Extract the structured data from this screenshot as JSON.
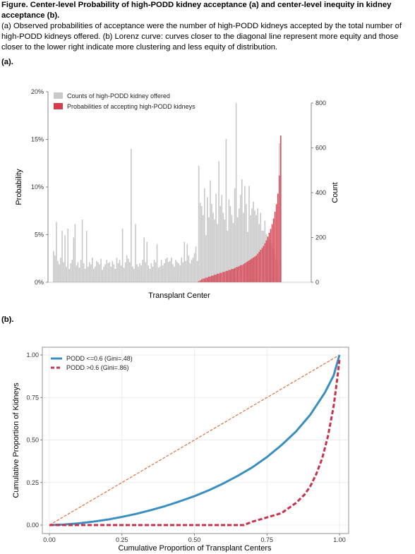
{
  "caption": {
    "title": "Figure. Center-level Probability of high-PODD kidney acceptance (a) and center-level inequity in kidney acceptance (b).",
    "body": "(a) Observed probabilities of acceptance were the number of high-PODD kidneys accepted by the total number of high-PODD kidneys offered. (b) Lorenz curve: curves closer to the diagonal line represent more equity and those closer to the lower right indicate more clustering and less equity of distribution.",
    "label_a": "(a).",
    "label_b": "(b)."
  },
  "colors": {
    "counts": "#c8c8c8",
    "probabilities": "#d43d4c",
    "lorenz_low": "#3a8fc0",
    "lorenz_high": "#c8324b",
    "diagonal": "#e0703a"
  },
  "chart_data": [
    {
      "type": "bar",
      "title": "",
      "xlabel": "Transplant Center",
      "ylabel": "Probability",
      "ylabel_right": "Count",
      "ylim": [
        0,
        0.2
      ],
      "ylim_right": [
        0,
        800
      ],
      "yticks": [
        "0%",
        "5%",
        "10%",
        "15%",
        "20%"
      ],
      "yticks_right": [
        "0",
        "200",
        "400",
        "600",
        "800"
      ],
      "legend_position": "top-left",
      "series": [
        {
          "name": "Counts of high-PODD kidney offered",
          "axis": "right",
          "values": [
            140,
            120,
            270,
            95,
            80,
            110,
            230,
            90,
            210,
            70,
            240,
            60,
            85,
            100,
            200,
            260,
            75,
            90,
            65,
            100,
            280,
            85,
            60,
            230,
            70,
            90,
            80,
            110,
            60,
            70,
            95,
            90,
            80,
            105,
            55,
            70,
            80,
            100,
            85,
            90,
            70,
            95,
            80,
            60,
            110,
            85,
            100,
            75,
            240,
            65,
            90,
            120,
            105,
            90,
            595,
            70,
            60,
            260,
            80,
            70,
            85,
            75,
            100,
            200,
            90,
            180,
            75,
            60,
            85,
            70,
            100,
            90,
            170,
            65,
            70,
            100,
            75,
            85,
            105,
            110,
            90,
            95,
            110,
            80,
            70,
            100,
            90,
            85,
            75,
            110,
            90,
            180,
            95,
            170,
            120,
            85,
            100,
            110,
            130,
            160,
            95,
            520,
            355,
            340,
            300,
            420,
            210,
            380,
            290,
            455,
            350,
            310,
            280,
            395,
            260,
            540,
            340,
            390,
            310,
            280,
            640,
            230,
            370,
            340,
            300,
            265,
            420,
            800,
            290,
            330,
            390,
            460,
            310,
            430,
            350,
            225,
            430,
            300,
            330,
            360,
            320,
            300,
            330,
            260,
            310,
            230,
            230,
            275,
            215,
            200,
            190,
            175,
            165,
            150,
            120,
            100,
            90,
            620,
            95
          ],
          "color": "#c8c8c8"
        },
        {
          "name": "Probabilities of accepting high-PODD kidneys",
          "axis": "left",
          "values": [
            0,
            0,
            0,
            0,
            0,
            0,
            0,
            0,
            0,
            0,
            0,
            0,
            0,
            0,
            0,
            0,
            0,
            0,
            0,
            0,
            0,
            0,
            0,
            0,
            0,
            0,
            0,
            0,
            0,
            0,
            0,
            0,
            0,
            0,
            0,
            0,
            0,
            0,
            0,
            0,
            0,
            0,
            0,
            0,
            0,
            0,
            0,
            0,
            0,
            0,
            0,
            0,
            0,
            0,
            0,
            0,
            0,
            0,
            0,
            0,
            0,
            0,
            0,
            0,
            0,
            0,
            0,
            0,
            0,
            0,
            0,
            0,
            0,
            0,
            0,
            0,
            0,
            0,
            0,
            0,
            0,
            0,
            0,
            0,
            0,
            0,
            0,
            0,
            0,
            0,
            0,
            0,
            0,
            0,
            0,
            0,
            0,
            0,
            0,
            0,
            0,
            0.001,
            0.002,
            0.003,
            0.004,
            0.004,
            0.005,
            0.005,
            0.006,
            0.006,
            0.007,
            0.007,
            0.008,
            0.008,
            0.009,
            0.009,
            0.01,
            0.01,
            0.011,
            0.011,
            0.012,
            0.012,
            0.013,
            0.013,
            0.014,
            0.014,
            0.015,
            0.016,
            0.016,
            0.017,
            0.018,
            0.018,
            0.019,
            0.02,
            0.021,
            0.022,
            0.023,
            0.024,
            0.025,
            0.026,
            0.027,
            0.028,
            0.03,
            0.032,
            0.034,
            0.036,
            0.038,
            0.041,
            0.044,
            0.048,
            0.052,
            0.056,
            0.061,
            0.067,
            0.074,
            0.082,
            0.093,
            0.112,
            0.154
          ],
          "color": "#d43d4c"
        }
      ]
    },
    {
      "type": "line",
      "title": "",
      "xlabel": "Cumulative Proportion of Transplant Centers",
      "ylabel": "Cumulative Proportion of Kidneys",
      "xlim": [
        0,
        1
      ],
      "ylim": [
        0,
        1
      ],
      "xticks": [
        "0.00",
        "0.25",
        "0.50",
        "0.75",
        "1.00"
      ],
      "yticks": [
        "0.00",
        "0.25",
        "0.50",
        "0.75",
        "1.00"
      ],
      "legend_position": "top-left",
      "series": [
        {
          "name": "PODD <=0.6 (Gini=.48)",
          "style": "solid",
          "color": "#3a8fc0",
          "x": [
            0,
            0.05,
            0.1,
            0.15,
            0.2,
            0.25,
            0.3,
            0.35,
            0.4,
            0.45,
            0.5,
            0.55,
            0.6,
            0.65,
            0.7,
            0.75,
            0.8,
            0.85,
            0.9,
            0.95,
            0.98,
            1
          ],
          "y": [
            0,
            0.003,
            0.01,
            0.02,
            0.032,
            0.048,
            0.066,
            0.088,
            0.112,
            0.14,
            0.17,
            0.205,
            0.245,
            0.29,
            0.34,
            0.4,
            0.47,
            0.55,
            0.65,
            0.78,
            0.88,
            1
          ]
        },
        {
          "name": "PODD >0.6 (Gini=.86)",
          "style": "dashed",
          "color": "#c8324b",
          "x": [
            0,
            0.1,
            0.2,
            0.3,
            0.4,
            0.5,
            0.6,
            0.67,
            0.7,
            0.75,
            0.8,
            0.85,
            0.88,
            0.9,
            0.92,
            0.94,
            0.96,
            0.98,
            0.99,
            1
          ],
          "y": [
            0,
            0,
            0,
            0,
            0,
            0,
            0,
            0,
            0.02,
            0.045,
            0.07,
            0.13,
            0.18,
            0.23,
            0.3,
            0.39,
            0.52,
            0.7,
            0.83,
            0.97
          ]
        },
        {
          "name": "",
          "style": "dotted",
          "color": "#e0703a",
          "x": [
            0,
            1
          ],
          "y": [
            0,
            1
          ]
        }
      ]
    }
  ]
}
